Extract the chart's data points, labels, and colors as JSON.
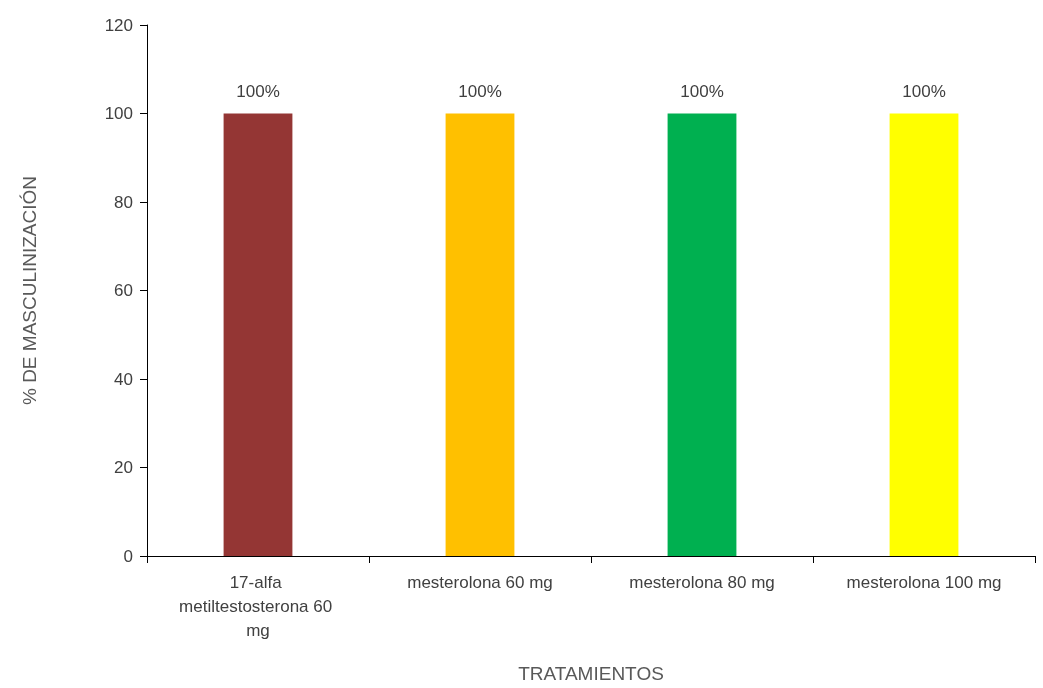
{
  "chart_data": {
    "type": "bar",
    "xlabel": "TRATAMIENTOS",
    "ylabel": "% DE MASCULINIZACIÓN",
    "categories": [
      "17-alfa metiltestosterona 60 mg",
      "mesterolona 60 mg",
      "mesterolona 80 mg",
      "mesterolona 100 mg"
    ],
    "values": [
      100,
      100,
      100,
      100
    ],
    "colors": [
      "#943634",
      "#ffc000",
      "#00b050",
      "#ffff00"
    ],
    "value_labels": [
      "100%",
      "100%",
      "100%",
      "100%"
    ],
    "ylim": [
      0,
      120
    ],
    "yticks": [
      0,
      20,
      40,
      60,
      80,
      100,
      120
    ],
    "grid": false
  }
}
